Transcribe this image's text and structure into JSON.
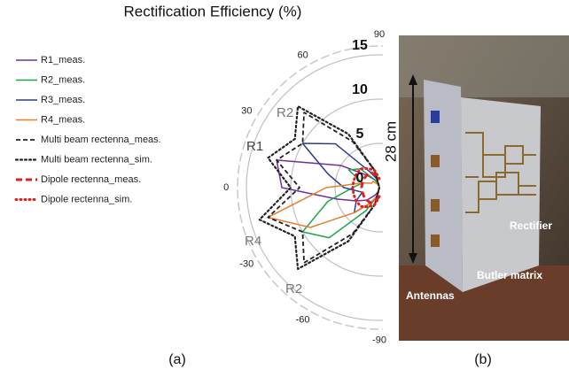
{
  "chart_data": {
    "type": "polar",
    "title": "Rectification Efficiency (%)",
    "theta": [
      -90,
      -75,
      -60,
      -45,
      -30,
      -15,
      0,
      15,
      30,
      45,
      60,
      75,
      90
    ],
    "thetaticks": [
      90,
      60,
      30,
      0,
      -30,
      -60,
      -90
    ],
    "rlim": [
      0,
      16
    ],
    "rticks": [
      0,
      5,
      10,
      15
    ],
    "series": [
      {
        "name": "R1_meas.",
        "color": "#7030a0",
        "style": "solid",
        "values": [
          0,
          0.5,
          1,
          2,
          3,
          5,
          11,
          12,
          5,
          2,
          1,
          0.5,
          0
        ]
      },
      {
        "name": "R2_meas.",
        "color": "#21a34a",
        "style": "solid",
        "values": [
          0,
          1,
          3,
          8,
          10,
          6,
          3,
          2,
          4,
          3,
          1,
          0.5,
          0
        ]
      },
      {
        "name": "R3_meas.",
        "color": "#2c3e91",
        "style": "solid",
        "values": [
          0,
          1,
          2,
          4,
          3,
          2,
          4,
          6,
          10,
          7,
          2,
          1,
          0
        ]
      },
      {
        "name": "R4_meas.",
        "color": "#e87d2c",
        "style": "solid",
        "values": [
          0,
          1,
          2,
          4,
          9,
          13,
          6,
          2,
          1,
          1,
          0.5,
          0.3,
          0
        ]
      },
      {
        "name": "Multi beam rectenna_meas.",
        "color": "#222222",
        "style": "dashed",
        "values": [
          0,
          2,
          6,
          12,
          10,
          13,
          9,
          12,
          10,
          12,
          6,
          2,
          0
        ]
      },
      {
        "name": "Multi beam rectenna_sim.",
        "color": "#222222",
        "style": "dotted",
        "values": [
          0,
          2,
          7,
          13,
          11,
          14,
          10,
          13,
          11,
          13,
          7,
          2,
          0
        ]
      },
      {
        "name": "Dipole rectenna_meas.",
        "color": "#e02020",
        "style": "thickdash",
        "values": [
          1,
          1.5,
          2,
          2,
          2,
          2,
          2,
          2,
          2,
          2,
          2,
          1.5,
          1
        ]
      },
      {
        "name": "Dipole rectenna_sim.",
        "color": "#e02020",
        "style": "thickdot",
        "values": [
          1,
          2,
          2.5,
          3,
          3,
          3,
          3,
          3,
          3,
          3,
          2.5,
          2,
          1
        ]
      }
    ],
    "annotations": [
      "R2",
      "R1",
      "R4",
      "R2"
    ]
  },
  "photo": {
    "dimension": "28 cm",
    "labels": [
      "Rectifier",
      "Butler matrix",
      "Antennas"
    ]
  },
  "panel_labels": [
    "(a)",
    "(b)"
  ]
}
